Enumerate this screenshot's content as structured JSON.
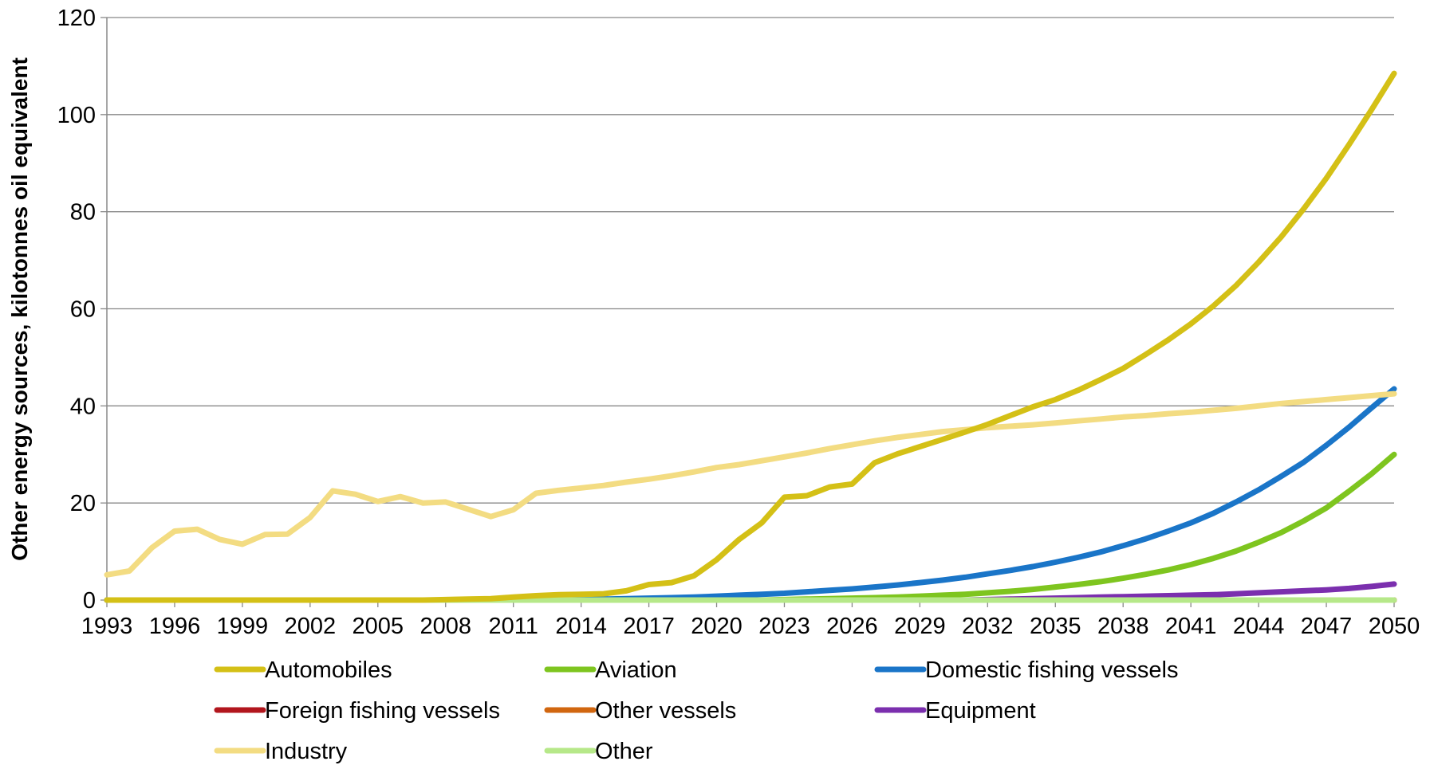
{
  "chart_data": {
    "type": "line",
    "title": "",
    "xlabel": "",
    "ylabel": "Other energy sources, kilotonnes oil equivalent",
    "ylim": [
      0,
      120
    ],
    "yticks": [
      "0",
      "20",
      "40",
      "60",
      "80",
      "100",
      "120"
    ],
    "xlim": [
      1993,
      2050
    ],
    "xticks": [
      "1993",
      "1996",
      "1999",
      "2002",
      "2005",
      "2008",
      "2011",
      "2014",
      "2017",
      "2020",
      "2023",
      "2026",
      "2029",
      "2032",
      "2035",
      "2038",
      "2041",
      "2044",
      "2047",
      "2050"
    ],
    "grid": "horizontal",
    "legend_position": "bottom",
    "x": [
      1993,
      1994,
      1995,
      1996,
      1997,
      1998,
      1999,
      2000,
      2001,
      2002,
      2003,
      2004,
      2005,
      2006,
      2007,
      2008,
      2009,
      2010,
      2011,
      2012,
      2013,
      2014,
      2015,
      2016,
      2017,
      2018,
      2019,
      2020,
      2021,
      2022,
      2023,
      2024,
      2025,
      2026,
      2027,
      2028,
      2029,
      2030,
      2031,
      2032,
      2033,
      2034,
      2035,
      2036,
      2037,
      2038,
      2039,
      2040,
      2041,
      2042,
      2043,
      2044,
      2045,
      2046,
      2047,
      2048,
      2049,
      2050
    ],
    "series": [
      {
        "name": "Foreign fishing vessels",
        "color": "#b2161d",
        "values": [
          0,
          0,
          0,
          0,
          0,
          0,
          0,
          0,
          0,
          0,
          0,
          0,
          0,
          0,
          0,
          0,
          0,
          0,
          0,
          0,
          0,
          0,
          0,
          0,
          0,
          0,
          0,
          0,
          0,
          0,
          0,
          0,
          0,
          0,
          0,
          0,
          0,
          0,
          0,
          0,
          0,
          0,
          0,
          0,
          0,
          0,
          0,
          0,
          0,
          0,
          0,
          0,
          0,
          0,
          0,
          0,
          0,
          0
        ]
      },
      {
        "name": "Other vessels",
        "color": "#d1660f",
        "values": [
          0,
          0,
          0,
          0,
          0,
          0,
          0,
          0,
          0,
          0,
          0,
          0,
          0,
          0,
          0,
          0,
          0,
          0,
          0,
          0,
          0,
          0,
          0,
          0,
          0,
          0,
          0,
          0,
          0,
          0,
          0,
          0,
          0,
          0,
          0,
          0,
          0,
          0,
          0,
          0,
          0,
          0,
          0,
          0,
          0,
          0,
          0,
          0,
          0,
          0,
          0,
          0,
          0,
          0,
          0,
          0,
          0,
          0
        ]
      },
      {
        "name": "Equipment",
        "color": "#7b2fae",
        "values": [
          0,
          0,
          0,
          0,
          0,
          0,
          0,
          0,
          0,
          0,
          0,
          0,
          0,
          0,
          0,
          0,
          0,
          0,
          0,
          0,
          0,
          0,
          0,
          0,
          0,
          0,
          0,
          0,
          0,
          0,
          0,
          0,
          0,
          0,
          0,
          0,
          0,
          0,
          0,
          0.1,
          0.2,
          0.3,
          0.4,
          0.5,
          0.6,
          0.7,
          0.8,
          0.9,
          1.0,
          1.1,
          1.3,
          1.5,
          1.7,
          1.9,
          2.1,
          2.4,
          2.8,
          3.3
        ]
      },
      {
        "name": "Aviation",
        "color": "#7ec51f",
        "values": [
          0,
          0,
          0,
          0,
          0,
          0,
          0,
          0,
          0,
          0,
          0,
          0,
          0,
          0,
          0,
          0,
          0,
          0,
          0,
          0,
          0,
          0,
          0,
          0,
          0,
          0,
          0,
          0,
          0,
          0,
          0.1,
          0.2,
          0.3,
          0.4,
          0.5,
          0.6,
          0.8,
          1.0,
          1.2,
          1.5,
          1.8,
          2.2,
          2.7,
          3.2,
          3.8,
          4.5,
          5.3,
          6.2,
          7.3,
          8.6,
          10.1,
          11.9,
          13.9,
          16.3,
          19.0,
          22.4,
          26.0,
          30.0
        ]
      },
      {
        "name": "Domestic fishing vessels",
        "color": "#1a75c8",
        "values": [
          0,
          0,
          0,
          0,
          0,
          0,
          0,
          0,
          0,
          0,
          0,
          0,
          0,
          0,
          0,
          0,
          0,
          0,
          0,
          0,
          0,
          0.1,
          0.2,
          0.3,
          0.4,
          0.5,
          0.6,
          0.8,
          1.0,
          1.2,
          1.4,
          1.7,
          2.0,
          2.3,
          2.7,
          3.1,
          3.6,
          4.1,
          4.7,
          5.4,
          6.1,
          6.9,
          7.8,
          8.8,
          9.9,
          11.2,
          12.6,
          14.2,
          15.9,
          17.9,
          20.2,
          22.7,
          25.5,
          28.4,
          31.9,
          35.6,
          39.6,
          43.5
        ]
      },
      {
        "name": "Industry",
        "color": "#f3dc82",
        "values": [
          5.2,
          6.0,
          10.8,
          14.2,
          14.6,
          12.5,
          11.5,
          13.5,
          13.6,
          17.0,
          22.5,
          21.8,
          20.3,
          21.3,
          20.0,
          20.2,
          18.7,
          17.2,
          18.6,
          22.0,
          22.6,
          23.1,
          23.6,
          24.3,
          24.9,
          25.6,
          26.4,
          27.3,
          27.9,
          28.7,
          29.5,
          30.3,
          31.2,
          32.0,
          32.8,
          33.5,
          34.1,
          34.7,
          35.1,
          35.5,
          35.8,
          36.1,
          36.5,
          36.9,
          37.3,
          37.7,
          38.0,
          38.4,
          38.7,
          39.1,
          39.5,
          40.0,
          40.5,
          40.9,
          41.3,
          41.7,
          42.1,
          42.5
        ]
      },
      {
        "name": "Other",
        "color": "#b6e889",
        "values": [
          0,
          0,
          0,
          0,
          0,
          0,
          0,
          0,
          0,
          0,
          0,
          0,
          0,
          0,
          0,
          0,
          0,
          0,
          0,
          0,
          0,
          0,
          0,
          0,
          0,
          0,
          0,
          0,
          0,
          0,
          0,
          0,
          0,
          0,
          0,
          0,
          0,
          0,
          0,
          0,
          0,
          0,
          0,
          0,
          0,
          0,
          0,
          0,
          0,
          0,
          0,
          0,
          0,
          0,
          0,
          0,
          0,
          0
        ]
      },
      {
        "name": "Automobiles",
        "color": "#d4c016",
        "values": [
          0,
          0,
          0,
          0,
          0,
          0,
          0,
          0,
          0,
          0,
          0,
          0,
          0,
          0,
          0,
          0.1,
          0.2,
          0.3,
          0.6,
          0.9,
          1.1,
          1.2,
          1.3,
          1.9,
          3.2,
          3.6,
          5.0,
          8.3,
          12.5,
          15.9,
          21.2,
          21.5,
          23.3,
          23.9,
          28.3,
          30.1,
          31.6,
          33.1,
          34.6,
          36.2,
          38.0,
          39.8,
          41.3,
          43.2,
          45.4,
          47.7,
          50.6,
          53.6,
          56.9,
          60.6,
          64.8,
          69.6,
          74.8,
          80.6,
          86.9,
          93.8,
          101.0,
          108.5
        ]
      }
    ],
    "legend": [
      {
        "name": "Automobiles",
        "color": "#d4c016"
      },
      {
        "name": "Aviation",
        "color": "#7ec51f"
      },
      {
        "name": "Domestic fishing vessels",
        "color": "#1a75c8"
      },
      {
        "name": "Foreign fishing vessels",
        "color": "#b2161d"
      },
      {
        "name": "Other vessels",
        "color": "#d1660f"
      },
      {
        "name": "Equipment",
        "color": "#7b2fae"
      },
      {
        "name": "Industry",
        "color": "#f3dc82"
      },
      {
        "name": "Other",
        "color": "#b6e889"
      }
    ]
  }
}
